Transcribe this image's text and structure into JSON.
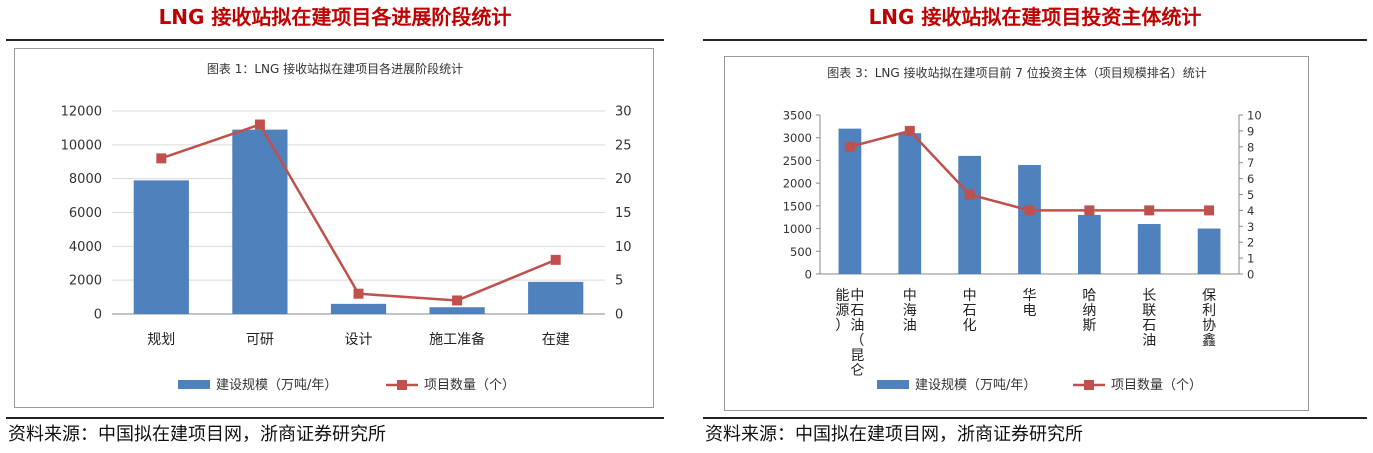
{
  "left": {
    "heading": "LNG 接收站拟在建项目各进展阶段统计",
    "source": "资料来源：中国拟在建项目网，浙商证券研究所"
  },
  "right": {
    "heading": "LNG 接收站拟在建项目投资主体统计",
    "source": "资料来源：中国拟在建项目网，浙商证券研究所"
  },
  "chart_data": [
    {
      "type": "bar",
      "title": "图表 1：LNG 接收站拟在建项目各进展阶段统计",
      "categories": [
        "规划",
        "可研",
        "设计",
        "施工准备",
        "在建"
      ],
      "series": [
        {
          "name": "建设规模（万吨/年）",
          "type": "bar",
          "axis": "left",
          "values": [
            7900,
            10900,
            600,
            400,
            1900
          ],
          "color": "#4f81bd"
        },
        {
          "name": "项目数量（个）",
          "type": "line",
          "axis": "right",
          "values": [
            23,
            28,
            3,
            2,
            8
          ],
          "color": "#c0504d"
        }
      ],
      "y_left": {
        "range": [
          0,
          12000
        ],
        "ticks": [
          "0",
          "2000",
          "4000",
          "6000",
          "8000",
          "10000",
          "12000"
        ]
      },
      "y_right": {
        "range": [
          0,
          30
        ],
        "ticks": [
          "0",
          "5",
          "10",
          "15",
          "20",
          "25",
          "30"
        ]
      },
      "legend_position": "bottom",
      "grid": true
    },
    {
      "type": "bar",
      "title": "图表 3：LNG 接收站拟在建项目前 7 位投资主体（项目规模排名）统计",
      "categories": [
        "中石油（昆仑能源）",
        "中海油",
        "中石化",
        "华电",
        "哈纳斯",
        "长联石油",
        "保利协鑫"
      ],
      "category_lines": [
        [
          "中石油（昆仑",
          "能源）"
        ],
        [
          "中海油"
        ],
        [
          "中石化"
        ],
        [
          "华电"
        ],
        [
          "哈纳斯"
        ],
        [
          "长联石油"
        ],
        [
          "保利协鑫"
        ]
      ],
      "series": [
        {
          "name": "建设规模（万吨/年）",
          "type": "bar",
          "axis": "left",
          "values": [
            3200,
            3100,
            2600,
            2400,
            1300,
            1100,
            1000
          ],
          "color": "#4f81bd"
        },
        {
          "name": "项目数量（个）",
          "type": "line",
          "axis": "right",
          "values": [
            8,
            9,
            5,
            4,
            4,
            4,
            4
          ],
          "color": "#c0504d"
        }
      ],
      "y_left": {
        "range": [
          0,
          3500
        ],
        "ticks": [
          "0",
          "500",
          "1000",
          "1500",
          "2000",
          "2500",
          "3000",
          "3500"
        ]
      },
      "y_right": {
        "range": [
          0,
          10
        ],
        "ticks": [
          "0",
          "1",
          "2",
          "3",
          "4",
          "5",
          "6",
          "7",
          "8",
          "9",
          "10"
        ]
      },
      "legend_position": "bottom",
      "grid": false
    }
  ]
}
